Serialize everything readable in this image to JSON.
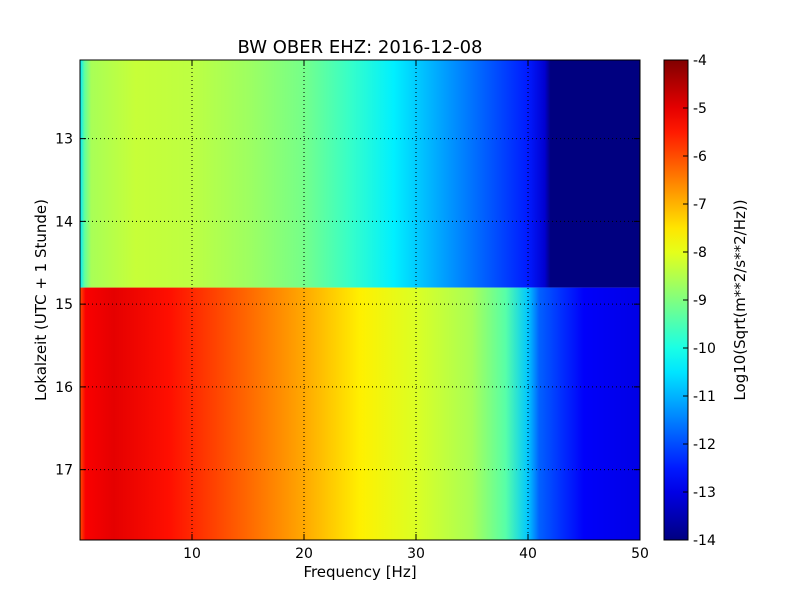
{
  "chart_data": {
    "type": "heatmap",
    "title": "BW OBER EHZ: 2016-12-08",
    "xlabel": "Frequency [Hz]",
    "ylabel": "Lokalzeit (UTC + 1 Stunde)",
    "xlim": [
      0,
      50
    ],
    "ylim": [
      12.05,
      17.85
    ],
    "x_ticks": [
      "10",
      "20",
      "30",
      "40",
      "50"
    ],
    "x_tick_values": [
      10,
      20,
      30,
      40,
      50
    ],
    "y_ticks": [
      "13",
      "14",
      "15",
      "16",
      "17"
    ],
    "y_tick_values": [
      13,
      14,
      15,
      16,
      17
    ],
    "y_inverted": true,
    "grid": true,
    "colormap": "jet",
    "colorbar": {
      "label": "Log10(Sqrt(m**2/s**2/Hz))",
      "vmin": -14,
      "vmax": -4,
      "ticks": [
        "-4",
        "-5",
        "-6",
        "-7",
        "-8",
        "-9",
        "-10",
        "-11",
        "-12",
        "-13",
        "-14"
      ],
      "tick_values": [
        -4,
        -5,
        -6,
        -7,
        -8,
        -9,
        -10,
        -11,
        -12,
        -13,
        -14
      ]
    },
    "segments": [
      {
        "time_range": [
          12.05,
          14.8
        ],
        "profile": [
          {
            "freq": 0.0,
            "value": -10.5
          },
          {
            "freq": 0.4,
            "value": -9.3
          },
          {
            "freq": 1.0,
            "value": -8.6
          },
          {
            "freq": 5.0,
            "value": -8.3
          },
          {
            "freq": 10.0,
            "value": -8.4
          },
          {
            "freq": 15.0,
            "value": -8.7
          },
          {
            "freq": 20.0,
            "value": -9.1
          },
          {
            "freq": 24.0,
            "value": -9.7
          },
          {
            "freq": 28.0,
            "value": -10.4
          },
          {
            "freq": 32.0,
            "value": -11.1
          },
          {
            "freq": 36.0,
            "value": -11.8
          },
          {
            "freq": 40.0,
            "value": -12.5
          },
          {
            "freq": 41.5,
            "value": -13.2
          },
          {
            "freq": 42.0,
            "value": -14.0
          },
          {
            "freq": 50.0,
            "value": -14.0
          }
        ]
      },
      {
        "time_range": [
          14.8,
          17.85
        ],
        "profile": [
          {
            "freq": 0.0,
            "value": -6.0
          },
          {
            "freq": 0.5,
            "value": -5.2
          },
          {
            "freq": 3.0,
            "value": -5.0
          },
          {
            "freq": 8.0,
            "value": -5.4
          },
          {
            "freq": 12.0,
            "value": -5.9
          },
          {
            "freq": 16.0,
            "value": -6.4
          },
          {
            "freq": 20.0,
            "value": -6.9
          },
          {
            "freq": 25.0,
            "value": -7.6
          },
          {
            "freq": 30.0,
            "value": -8.1
          },
          {
            "freq": 35.0,
            "value": -8.6
          },
          {
            "freq": 38.0,
            "value": -9.4
          },
          {
            "freq": 40.0,
            "value": -10.8
          },
          {
            "freq": 41.0,
            "value": -11.8
          },
          {
            "freq": 43.0,
            "value": -12.3
          },
          {
            "freq": 45.0,
            "value": -12.8
          },
          {
            "freq": 50.0,
            "value": -13.0
          }
        ]
      }
    ]
  }
}
